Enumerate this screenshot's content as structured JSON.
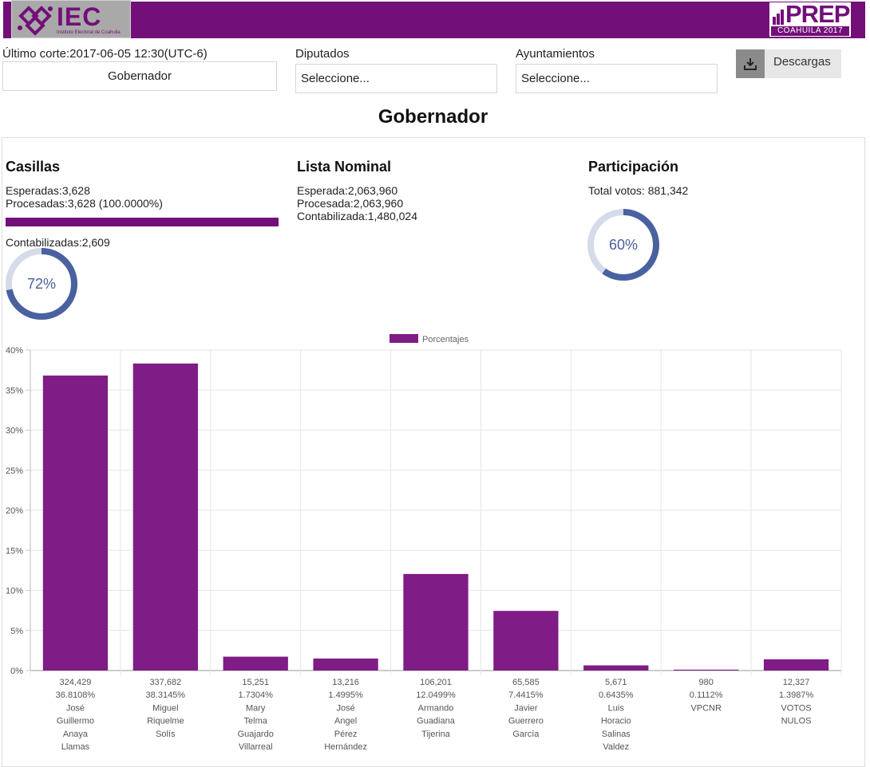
{
  "header": {
    "iec_logo_text": "IEC",
    "iec_logo_sub": "Instituto Electoral de Coahuila",
    "prep_logo_text": "PREP",
    "prep_logo_sub": "COAHUILA 2017"
  },
  "toolbar": {
    "ultimo_corte": "Último corte:2017-06-05 12:30(UTC-6)",
    "eleccion_value": "Gobernador",
    "diputados_label": "Diputados",
    "diputados_value": "Seleccione...",
    "ayuntamientos_label": "Ayuntamientos",
    "ayuntamientos_value": "Seleccione...",
    "descargas_label": "Descargas",
    "colors": {
      "brand": "#720f79",
      "icon_bg": "#8b8b8b"
    },
    "icons": {
      "download": "download-icon"
    }
  },
  "page": {
    "title": "Gobernador"
  },
  "casillas": {
    "title": "Casillas",
    "esperadas": "Esperadas:3,628",
    "procesadas": "Procesadas:3,628 (100.0000%)",
    "progress_fraction": 1.0,
    "contabilizadas": "Contabilizadas:2,609",
    "donut_label": "72%",
    "donut_fraction": 0.72
  },
  "lista_nominal": {
    "title": "Lista Nominal",
    "esperada": "Esperada:2,063,960",
    "procesada": "Procesada:2,063,960",
    "contabilizada": "Contabilizada:1,480,024"
  },
  "participacion": {
    "title": "Participación",
    "total_votos": "Total votos: 881,342",
    "donut_label": "60%",
    "donut_fraction": 0.6
  },
  "chart_data": {
    "type": "bar",
    "legend": [
      "Porcentajes"
    ],
    "legend_position": "top",
    "grid": true,
    "bar_color": "#7f1c85",
    "ylim": [
      0,
      40
    ],
    "yticks": [
      "0%",
      "5%",
      "10%",
      "15%",
      "20%",
      "25%",
      "30%",
      "35%",
      "40%"
    ],
    "series": [
      {
        "name": "Porcentajes",
        "values": [
          36.8108,
          38.3145,
          1.7304,
          1.4995,
          12.0499,
          7.4415,
          0.6435,
          0.1112,
          1.3987
        ]
      }
    ],
    "categories": [
      {
        "votes": "324,429",
        "pct": "36.8108%",
        "name": [
          "José",
          "Guillermo",
          "Anaya",
          "Llamas"
        ]
      },
      {
        "votes": "337,682",
        "pct": "38.3145%",
        "name": [
          "Miguel",
          "Riquelme",
          "Solís"
        ]
      },
      {
        "votes": "15,251",
        "pct": "1.7304%",
        "name": [
          "Mary",
          "Telma",
          "Guajardo",
          "Villarreal"
        ]
      },
      {
        "votes": "13,216",
        "pct": "1.4995%",
        "name": [
          "José",
          "Angel",
          "Pérez",
          "Hernández"
        ]
      },
      {
        "votes": "106,201",
        "pct": "12.0499%",
        "name": [
          "Armando",
          "Guadiana",
          "Tijerina"
        ]
      },
      {
        "votes": "65,585",
        "pct": "7.4415%",
        "name": [
          "Javier",
          "Guerrero",
          "García"
        ]
      },
      {
        "votes": "5,671",
        "pct": "0.6435%",
        "name": [
          "Luis",
          "Horacio",
          "Salinas",
          "Valdez"
        ]
      },
      {
        "votes": "980",
        "pct": "0.1112%",
        "name": [
          "VPCNR"
        ]
      },
      {
        "votes": "12,327",
        "pct": "1.3987%",
        "name": [
          "VOTOS",
          "NULOS"
        ]
      }
    ]
  }
}
